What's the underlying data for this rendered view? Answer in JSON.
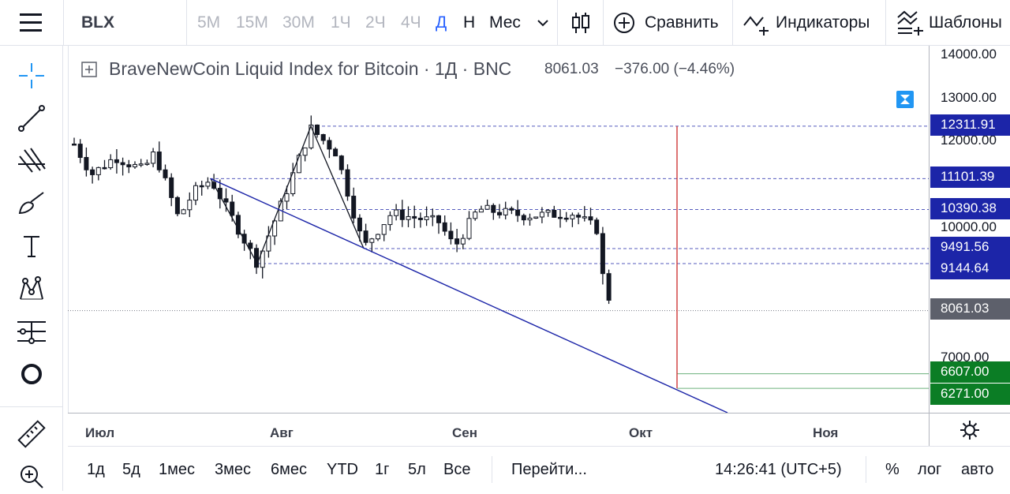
{
  "toolbar": {
    "symbol": "BLX",
    "timeframes": [
      "5М",
      "15М",
      "30М",
      "1Ч",
      "2Ч",
      "4Ч",
      "Д",
      "Н",
      "Мес"
    ],
    "active_timeframe": "Д",
    "compare_label": "Сравнить",
    "indicators_label": "Индикаторы",
    "templates_label": "Шаблоны"
  },
  "legend": {
    "title": "BraveNewCoin Liquid Index for Bitcoin · 1Д · BNC",
    "last_price": "8061.03",
    "change": "−376.00 (−4.46%)"
  },
  "left_tools": [
    "crosshair-icon",
    "trend-line-icon",
    "fib-retracement-icon",
    "brush-icon",
    "text-icon",
    "pattern-icon",
    "long-position-icon",
    "circle-icon",
    "ruler-icon",
    "zoom-icon"
  ],
  "price_scale": {
    "ticks": [
      "14000.00",
      "13000.00",
      "12000.00",
      "10000.00",
      "7000.00"
    ],
    "labels": [
      {
        "value": "12311.91",
        "color": "#1c25a8"
      },
      {
        "value": "11101.39",
        "color": "#1c25a8"
      },
      {
        "value": "10390.38",
        "color": "#1c25a8"
      },
      {
        "value": "9491.56",
        "color": "#1c25a8"
      },
      {
        "value": "9144.64",
        "color": "#1c25a8"
      },
      {
        "value": "8061.03",
        "color": "#5d606b"
      },
      {
        "value": "6607.00",
        "color": "#0b7d25"
      },
      {
        "value": "6271.00",
        "color": "#0b7d25"
      }
    ]
  },
  "time_axis": {
    "ticks": [
      "Июл",
      "Авг",
      "Сен",
      "Окт",
      "Ноя"
    ]
  },
  "bottom_bar": {
    "ranges": [
      "1д",
      "5д",
      "1мес",
      "3мес",
      "6мес",
      "YTD",
      "1г",
      "5л",
      "Все"
    ],
    "goto_label": "Перейти...",
    "clock": "14:26:41 (UTC+5)",
    "percent_label": "%",
    "log_label": "лог",
    "auto_label": "авто"
  },
  "colors": {
    "accent": "#2962ff",
    "drawing_line": "#1c25a8",
    "vertical_line": "#cc2929",
    "target_line": "#0b7d25"
  }
}
